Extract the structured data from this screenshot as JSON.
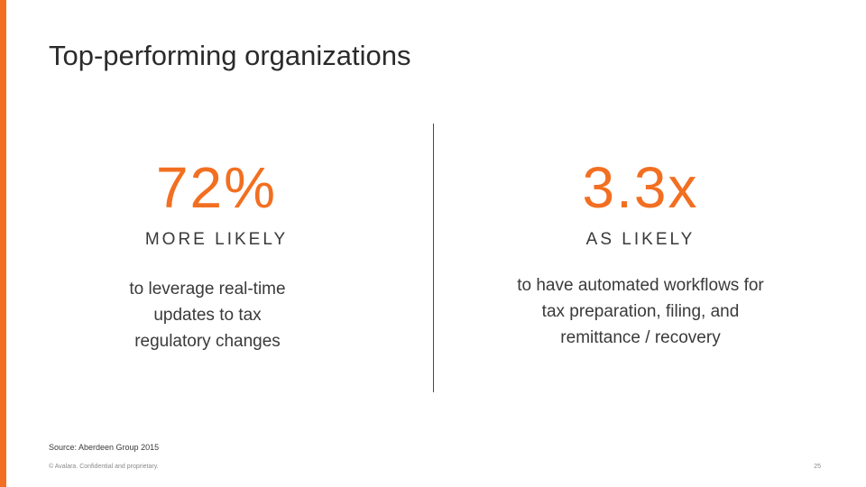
{
  "title": "Top-performing organizations",
  "stats": [
    {
      "value": "72%",
      "label": "MORE LIKELY",
      "description": "to leverage real-time updates to tax regulatory changes"
    },
    {
      "value": "3.3x",
      "label": "AS LIKELY",
      "description": "to have automated workflows for tax preparation, filing, and remittance / recovery"
    }
  ],
  "source": "Source: Aberdeen Group 2015",
  "footer": "© Avalara. Confidential and proprietary.",
  "page_number": "25",
  "colors": {
    "accent": "#f26f21",
    "text": "#3a3a3a"
  }
}
